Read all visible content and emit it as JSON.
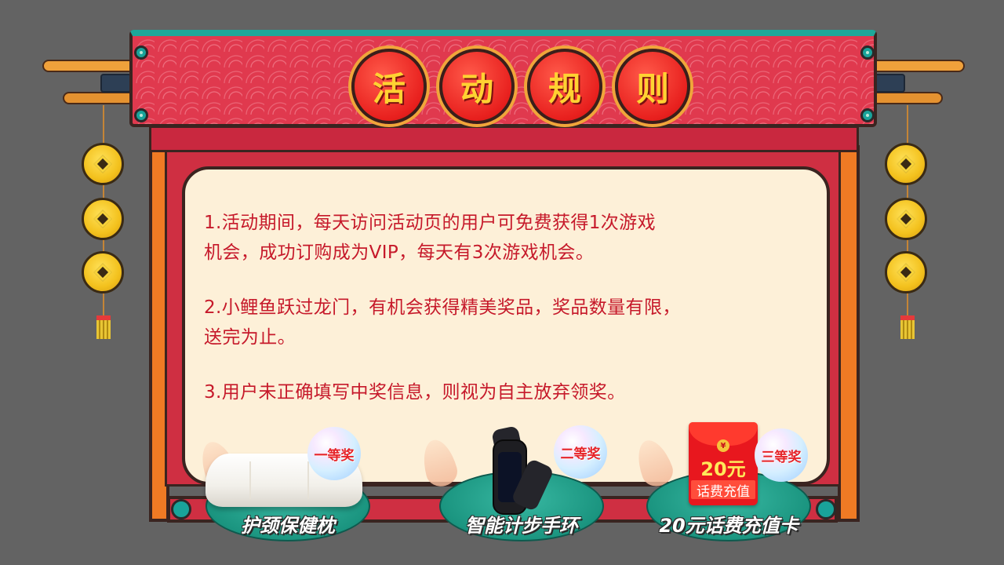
{
  "title": {
    "chars": [
      "活",
      "动",
      "规",
      "则"
    ]
  },
  "rules": [
    {
      "line1": "1.活动期间，每天访问活动页的用户可免费获得1次游戏",
      "line2": "机会，成功订购成为VIP，每天有3次游戏机会。"
    },
    {
      "line1": "2.小鲤鱼跃过龙门，有机会获得精美奖品，奖品数量有限，",
      "line2": "送完为止。"
    },
    {
      "line1": "3.用户未正确填写中奖信息，则视为自主放弃领奖。",
      "line2": ""
    }
  ],
  "prizes": [
    {
      "rank": "一等奖",
      "name": "护颈保健枕",
      "icon": "pillow-icon"
    },
    {
      "rank": "二等奖",
      "name": "智能计步手环",
      "icon": "fitness-band-icon"
    },
    {
      "rank": "三等奖",
      "name": "20元话费充值卡",
      "icon": "red-envelope-icon",
      "card_amount": "20元",
      "card_label": "话费充值",
      "seal": "¥"
    }
  ],
  "colors": {
    "rule_text": "#c6192a",
    "banner": "#e0394e",
    "title_text": "#ffd232"
  }
}
